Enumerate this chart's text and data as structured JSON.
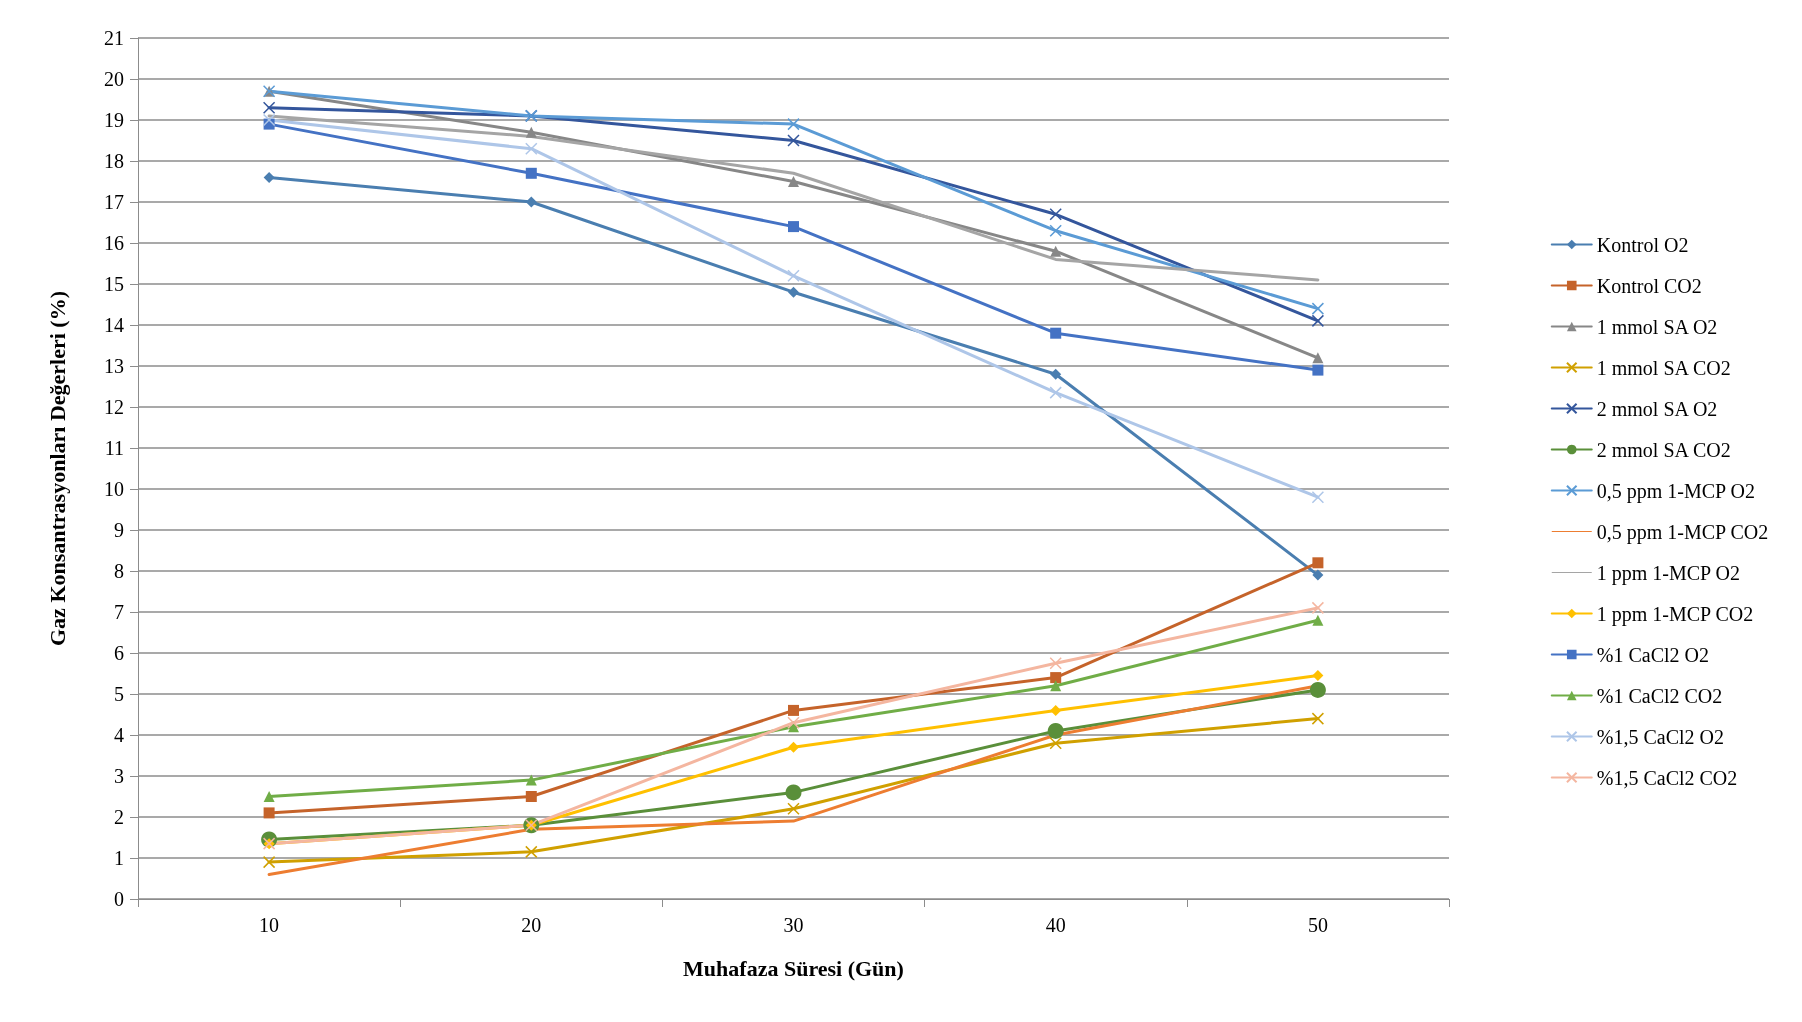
{
  "chart_data": {
    "type": "line",
    "xlabel": "Muhafaza Süresi (Gün)",
    "ylabel": "Gaz Konsantrasyonları Değerleri (%)",
    "categories": [
      "10",
      "20",
      "30",
      "40",
      "50"
    ],
    "ylim": [
      0,
      21
    ],
    "yticks": [
      0,
      1,
      2,
      3,
      4,
      5,
      6,
      7,
      8,
      9,
      10,
      11,
      12,
      13,
      14,
      15,
      16,
      17,
      18,
      19,
      20,
      21
    ],
    "grid": "y",
    "legend": "right",
    "series": [
      {
        "name": "Kontrol O2",
        "color": "#4a7eb0",
        "marker": "diamond",
        "values": [
          17.6,
          17.0,
          14.8,
          12.8,
          7.9
        ]
      },
      {
        "name": "Kontrol CO2",
        "color": "#c5632a",
        "marker": "square",
        "values": [
          2.1,
          2.5,
          4.6,
          5.4,
          8.2
        ]
      },
      {
        "name": "1 mmol SA O2",
        "color": "#878787",
        "marker": "triangle",
        "values": [
          19.7,
          18.7,
          17.5,
          15.8,
          13.2
        ]
      },
      {
        "name": "1 mmol SA CO2",
        "color": "#d0a000",
        "marker": "cross",
        "values": [
          0.9,
          1.15,
          2.2,
          3.8,
          4.4
        ]
      },
      {
        "name": "2 mmol SA O2",
        "color": "#34569c",
        "marker": "cross",
        "values": [
          19.3,
          19.1,
          18.5,
          16.7,
          14.1
        ]
      },
      {
        "name": "2 mmol SA CO2",
        "color": "#5a8f3a",
        "marker": "circle",
        "values": [
          1.45,
          1.8,
          2.6,
          4.1,
          5.1
        ]
      },
      {
        "name": "0,5 ppm 1-MCP O2",
        "color": "#5b9bd5",
        "marker": "cross",
        "values": [
          19.7,
          19.1,
          18.9,
          16.3,
          14.4
        ]
      },
      {
        "name": "0,5 ppm 1-MCP CO2",
        "color": "#ed7d31",
        "marker": "none",
        "values": [
          0.6,
          1.7,
          1.9,
          4.0,
          5.2
        ]
      },
      {
        "name": "1 ppm 1-MCP O2",
        "color": "#a5a5a5",
        "marker": "none",
        "values": [
          19.1,
          18.6,
          17.7,
          15.6,
          15.1
        ]
      },
      {
        "name": "1 ppm 1-MCP CO2",
        "color": "#ffc000",
        "marker": "diamond",
        "values": [
          1.35,
          1.8,
          3.7,
          4.6,
          5.45
        ]
      },
      {
        "name": "%1 CaCl2 O2",
        "color": "#4472c4",
        "marker": "square",
        "values": [
          18.9,
          17.7,
          16.4,
          13.8,
          12.9
        ]
      },
      {
        "name": "%1 CaCl2 CO2",
        "color": "#70ad47",
        "marker": "triangle",
        "values": [
          2.5,
          2.9,
          4.2,
          5.2,
          6.8
        ]
      },
      {
        "name": "%1,5 CaCl2 O2",
        "color": "#aec6e8",
        "marker": "cross",
        "values": [
          19.0,
          18.3,
          15.2,
          12.35,
          9.8
        ]
      },
      {
        "name": "%1,5 CaCl2 CO2",
        "color": "#f4b6a0",
        "marker": "cross",
        "values": [
          1.35,
          1.8,
          4.3,
          5.75,
          7.1
        ]
      }
    ]
  }
}
